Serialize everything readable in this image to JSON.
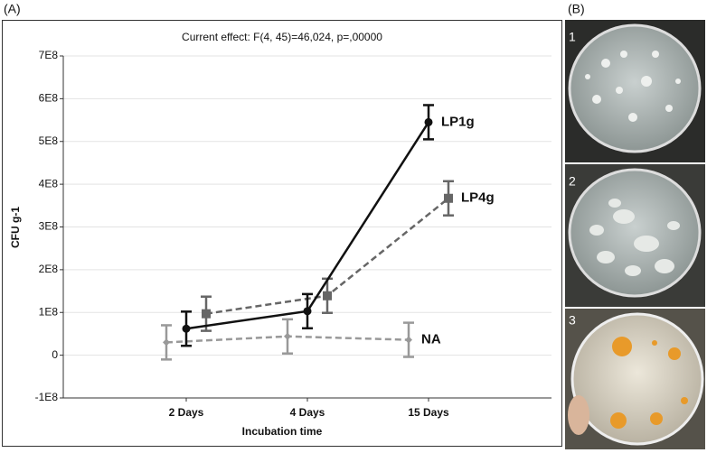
{
  "panel_labels": [
    "(A)",
    "(B)"
  ],
  "photo_labels": [
    "1",
    "2",
    "3"
  ],
  "chart_data": {
    "type": "line",
    "title": "Current effect: F(4, 45)=46,024, p=,00000",
    "x_label": "Incubation time",
    "y_label": "CFU g-1",
    "categories": [
      "2 Days",
      "4 Days",
      "15 Days"
    ],
    "series": [
      {
        "name": "LP1g",
        "color": "#111111",
        "line_style": "solid",
        "marker": "circle",
        "values": [
          62000000,
          103000000,
          545000000
        ],
        "errors": [
          40000000,
          40000000,
          40000000
        ]
      },
      {
        "name": "LP4g",
        "color": "#666666",
        "line_style": "dashed",
        "marker": "square",
        "values": [
          97000000,
          139000000,
          367000000
        ],
        "errors": [
          40000000,
          40000000,
          40000000
        ]
      },
      {
        "name": "NA",
        "color": "#999999",
        "line_style": "dashed",
        "marker": "diamond",
        "values": [
          30000000,
          44000000,
          36000000
        ],
        "errors": [
          40000000,
          40000000,
          40000000
        ]
      }
    ],
    "ylim": [
      -100000000,
      700000000
    ],
    "yticks": [
      {
        "value": -100000000,
        "label": "-1E8"
      },
      {
        "value": 0,
        "label": "0"
      },
      {
        "value": 100000000,
        "label": "1E8"
      },
      {
        "value": 200000000,
        "label": "2E8"
      },
      {
        "value": 300000000,
        "label": "3E8"
      },
      {
        "value": 400000000,
        "label": "4E8"
      },
      {
        "value": 500000000,
        "label": "5E8"
      },
      {
        "value": 600000000,
        "label": "6E8"
      },
      {
        "value": 700000000,
        "label": "7E8"
      }
    ],
    "grid": true
  }
}
